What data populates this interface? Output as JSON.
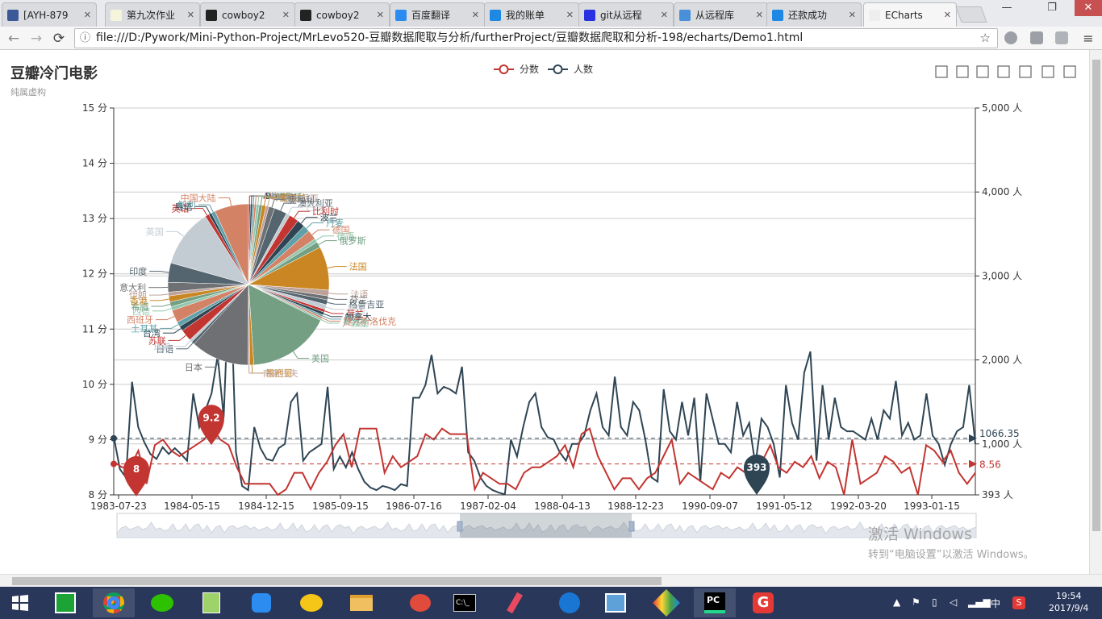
{
  "browser": {
    "tabs": [
      {
        "label": "[AYH-879",
        "icon": "bug-icon",
        "color": "#3b5998",
        "active": false
      },
      {
        "label": "第九次作业",
        "icon": "document-icon",
        "color": "#f5f5dc",
        "active": false
      },
      {
        "label": "cowboy2",
        "icon": "github-icon",
        "color": "#222222",
        "active": false
      },
      {
        "label": "cowboy2",
        "icon": "github-icon",
        "color": "#222222",
        "active": false
      },
      {
        "label": "百度翻译",
        "icon": "translate-icon",
        "color": "#2a8cf0",
        "active": false
      },
      {
        "label": "我的账单",
        "icon": "globe-icon",
        "color": "#1e88e5",
        "active": false
      },
      {
        "label": "git从远程",
        "icon": "baidu-icon",
        "color": "#2932e1",
        "active": false
      },
      {
        "label": "从远程库",
        "icon": "rocket-icon",
        "color": "#4a90d9",
        "active": false
      },
      {
        "label": "还款成功",
        "icon": "globe-icon",
        "color": "#1e88e5",
        "active": false
      },
      {
        "label": "ECharts",
        "icon": "page-icon",
        "color": "#eeeeee",
        "active": true
      }
    ],
    "url": "file:///D:/Pywork/Mini-Python-Project/MrLevo520-豆瓣数据爬取与分析/furtherProject/豆瓣数据爬取和分析-198/echarts/Demo1.html"
  },
  "chart": {
    "title": "豆瓣冷门电影",
    "subtitle": "纯属虚构",
    "legend": [
      "分数",
      "人数"
    ],
    "toolbox": [
      "zoom-icon",
      "zoom-reset-icon",
      "data-view-icon",
      "line-chart-icon",
      "bar-chart-icon",
      "restore-icon",
      "save-image-icon"
    ],
    "colors": {
      "score": "#c23531",
      "count": "#2f4554",
      "axis": "#333333",
      "grid": "#cccccc"
    }
  },
  "chart_data": {
    "type": "line",
    "x_ticks": [
      "1983-07-23",
      "1984-05-15",
      "1984-12-15",
      "1985-09-15",
      "1986-07-16",
      "1987-02-04",
      "1988-04-13",
      "1988-12-23",
      "1990-09-07",
      "1991-05-12",
      "1992-03-20",
      "1993-01-15"
    ],
    "y_left": {
      "min": 8,
      "max": 15,
      "ticks": [
        "8 分",
        "9 分",
        "10 分",
        "11 分",
        "12 分",
        "13 分",
        "14 分",
        "15 分"
      ]
    },
    "y_right": {
      "min": 393,
      "max": 5000,
      "ticks": [
        "393 人",
        "1,000 人",
        "2,000 人",
        "3,000 人",
        "4,000 人",
        "5,000 人"
      ]
    },
    "series": [
      {
        "name": "分数",
        "values": [
          8.6,
          8.5,
          8.5,
          8.8,
          8.2,
          8.9,
          9.0,
          8.8,
          8.7,
          8.8,
          8.9,
          9.0,
          9.2,
          9.0,
          8.9,
          8.5,
          8.2,
          8.2,
          8.2,
          8.2,
          8.0,
          8.1,
          8.4,
          8.4,
          8.1,
          8.4,
          8.6,
          8.9,
          9.1,
          8.5,
          9.2,
          9.2,
          9.2,
          8.4,
          8.7,
          8.5,
          8.6,
          8.7,
          9.1,
          9.0,
          9.2,
          9.1,
          9.1,
          9.1,
          8.1,
          8.4,
          8.3,
          8.2,
          8.2,
          8.1,
          8.4,
          8.5,
          8.5,
          8.6,
          8.7,
          8.9,
          8.5,
          9.1,
          9.2,
          8.7,
          8.4,
          8.1,
          8.3,
          8.3,
          8.1,
          8.3,
          8.4,
          8.7,
          9.0,
          8.2,
          8.4,
          8.3,
          8.2,
          8.1,
          8.4,
          8.3,
          8.5,
          8.4,
          8.6,
          8.6,
          8.9,
          8.5,
          8.4,
          8.6,
          8.5,
          8.7,
          8.3,
          8.6,
          8.5,
          8.0,
          9.0,
          8.2,
          8.3,
          8.4,
          8.7,
          8.6,
          8.4,
          8.5,
          8.0,
          8.9,
          8.8,
          8.6,
          8.8,
          8.4,
          8.2,
          8.4
        ],
        "markPoint": {
          "max": "9.2",
          "min": "8"
        },
        "markLine": {
          "average": "8.56"
        }
      },
      {
        "name": "人数",
        "values": [
          1090,
          700,
          600,
          1740,
          1200,
          1020,
          880,
          820,
          960,
          880,
          950,
          880,
          800,
          1600,
          1200,
          1400,
          1600,
          2050,
          1320,
          3182,
          900,
          500,
          450,
          1200,
          950,
          820,
          800,
          950,
          1000,
          1500,
          1600,
          800,
          900,
          950,
          1000,
          1680,
          700,
          850,
          720,
          900,
          700,
          550,
          480,
          450,
          500,
          480,
          450,
          520,
          500,
          1550,
          1550,
          1700,
          2060,
          1600,
          1680,
          1650,
          1600,
          1920,
          900,
          800,
          600,
          500,
          450,
          420,
          400,
          1050,
          850,
          1200,
          1500,
          1600,
          1200,
          1080,
          1050,
          900,
          800,
          1000,
          1000,
          1100,
          1400,
          1600,
          1200,
          1100,
          1800,
          1200,
          1100,
          1500,
          1400,
          1050,
          600,
          550,
          1650,
          1150,
          1050,
          1500,
          1100,
          1550,
          550,
          1600,
          1300,
          1000,
          1000,
          900,
          1500,
          1100,
          1250,
          750,
          1300,
          1200,
          1000,
          600,
          1700,
          1250,
          1050,
          1850,
          2100,
          800,
          1700,
          1050,
          1550,
          1200,
          1150,
          1150,
          1100,
          1050,
          1300,
          1050,
          1400,
          1300,
          1750,
          1100,
          1250,
          1050,
          1100,
          1600,
          1100,
          1000,
          750,
          1000,
          1150,
          1200,
          1700,
          1000
        ],
        "markPoint": {
          "max": "3182",
          "min": "393"
        },
        "markLine": {
          "average": "1066.35"
        }
      }
    ],
    "pie": {
      "labels": [
        "Austria",
        "Bhutan",
        "Hindi",
        "UK",
        "USA",
        "阿根廷",
        "爱尔兰",
        "爱沙尼亚",
        "奥地利",
        "澳大利亚",
        "巴西",
        "比利时",
        "波兰",
        "丹麦",
        "德国",
        "德语",
        "俄罗斯",
        "法国",
        "法语",
        "芬兰",
        "格鲁吉亚",
        "韩国",
        "荷兰",
        "加拿大",
        "捷克",
        "捷克斯洛伐克",
        "卢森堡",
        "美国",
        "墨西哥",
        "南斯拉夫",
        "日本",
        "日语",
        "瑞典",
        "苏联",
        "台湾",
        "土耳其",
        "西班牙",
        "西德",
        "希腊",
        "香港",
        "伊朗",
        "意大利",
        "印度",
        "英国",
        "英语",
        "粤语",
        "智利",
        "中国大陆"
      ],
      "values": [
        0.4,
        0.4,
        0.4,
        0.4,
        0.6,
        0.6,
        0.8,
        0.6,
        1.2,
        2.6,
        0.8,
        2.0,
        1.6,
        1.4,
        2.0,
        0.8,
        1.2,
        9.0,
        1.2,
        0.8,
        1.0,
        1.0,
        0.6,
        0.6,
        0.4,
        0.4,
        0.4,
        17.0,
        0.8,
        0.4,
        12.0,
        0.6,
        0.6,
        2.4,
        1.0,
        1.0,
        2.6,
        0.8,
        1.0,
        1.2,
        0.8,
        2.0,
        4.0,
        12.0,
        0.8,
        0.6,
        0.8,
        7.0
      ]
    }
  },
  "watermark": {
    "line1": "激活 Windows",
    "line2": "转到“电脑设置”以激活 Windows。"
  },
  "tray": {
    "time": "19:54",
    "date": "2017/9/4",
    "ime": "中"
  }
}
